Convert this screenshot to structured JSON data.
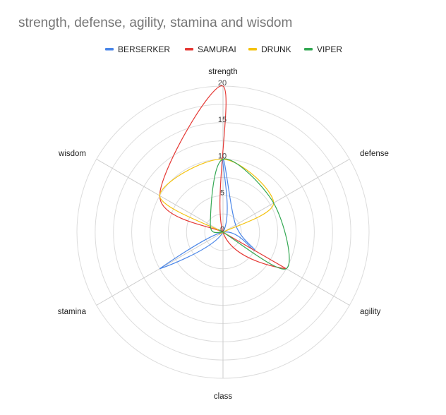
{
  "chart_data": {
    "type": "radar",
    "title": "strength, defense, agility, stamina and wisdom",
    "axes": [
      "strength",
      "defense",
      "agility",
      "class",
      "stamina",
      "wisdom"
    ],
    "radial_ticks": [
      0,
      5,
      10,
      15,
      20
    ],
    "rlim": [
      0,
      20
    ],
    "gridlines": true,
    "legend_position": "top",
    "series": [
      {
        "name": "BERSERKER",
        "color": "#4A86E8",
        "values": [
          10,
          2,
          5,
          0,
          10,
          0
        ]
      },
      {
        "name": "SAMURAI",
        "color": "#E53935",
        "values": [
          20,
          0,
          10,
          0,
          0,
          10
        ]
      },
      {
        "name": "DRUNK",
        "color": "#F4C20D",
        "values": [
          10,
          8,
          0,
          0,
          0,
          10
        ]
      },
      {
        "name": "VIPER",
        "color": "#34A853",
        "values": [
          10,
          8,
          10,
          0,
          0,
          2
        ]
      }
    ]
  }
}
